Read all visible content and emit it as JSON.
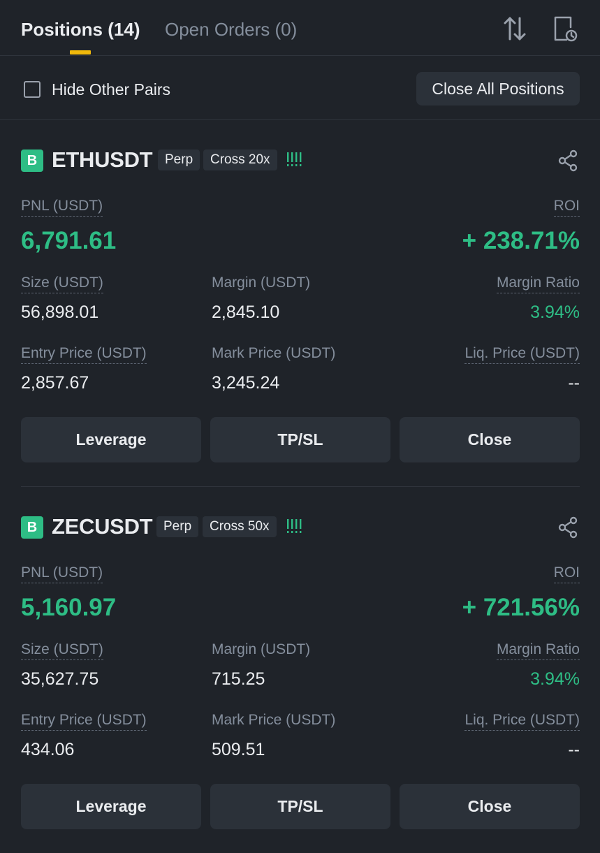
{
  "tabs": {
    "positions": "Positions (14)",
    "open_orders": "Open Orders (0)"
  },
  "filters": {
    "hide_other_pairs": "Hide Other Pairs",
    "hide_other_pairs_checked": false,
    "close_all": "Close All Positions"
  },
  "icons": {
    "sort": "sort-arrows-icon",
    "history": "document-clock-icon",
    "share": "share-icon"
  },
  "colors": {
    "background": "#1f2329",
    "profit_green": "#2ebd85",
    "accent_yellow": "#f0b90b",
    "button_bg": "#2b3139"
  },
  "labels": {
    "pnl": "PNL (USDT)",
    "roi": "ROI",
    "size": "Size (USDT)",
    "margin": "Margin (USDT)",
    "margin_ratio": "Margin Ratio",
    "entry_price": "Entry Price (USDT)",
    "mark_price": "Mark Price (USDT)",
    "liq_price": "Liq. Price (USDT)"
  },
  "buttons": {
    "leverage": "Leverage",
    "tpsl": "TP/SL",
    "close": "Close"
  },
  "positions": [
    {
      "side": "B",
      "symbol": "ETHUSDT",
      "type": "Perp",
      "margin_mode": "Cross 20x",
      "risk": "!!!!",
      "pnl": "6,791.61",
      "roi": "+ 238.71%",
      "size": "56,898.01",
      "margin": "2,845.10",
      "margin_ratio": "3.94%",
      "entry_price": "2,857.67",
      "mark_price": "3,245.24",
      "liq_price": "--"
    },
    {
      "side": "B",
      "symbol": "ZECUSDT",
      "type": "Perp",
      "margin_mode": "Cross 50x",
      "risk": "!!!!",
      "pnl": "5,160.97",
      "roi": "+ 721.56%",
      "size": "35,627.75",
      "margin": "715.25",
      "margin_ratio": "3.94%",
      "entry_price": "434.06",
      "mark_price": "509.51",
      "liq_price": "--"
    }
  ]
}
